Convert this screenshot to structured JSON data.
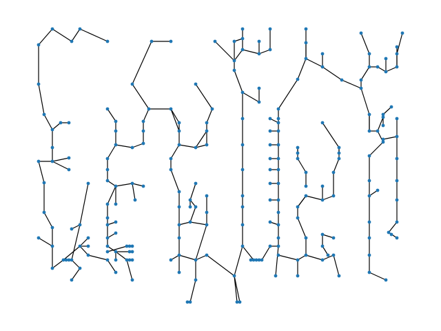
{
  "diagram": {
    "type": "tree-network",
    "edge_color": "#000000",
    "node_color": "#1f77b4",
    "background": "#ffffff",
    "title": "",
    "labels": []
  }
}
